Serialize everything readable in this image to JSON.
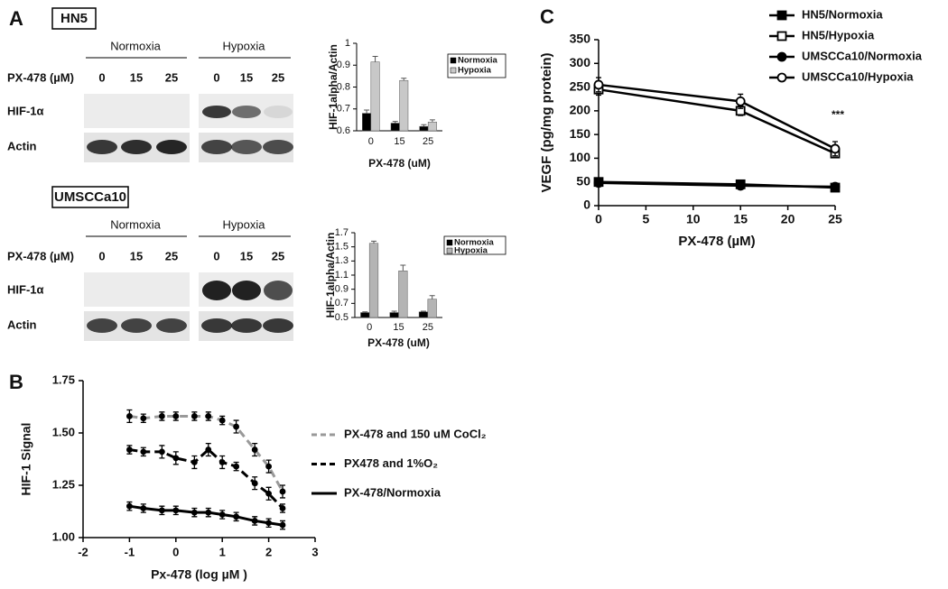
{
  "panels": [
    "A",
    "B",
    "C"
  ],
  "blots": [
    {
      "cell_line": "HN5",
      "conditions": [
        "Normoxia",
        "Hypoxia"
      ],
      "dose_label": "PX-478 (µM)",
      "doses": [
        0,
        15,
        25,
        0,
        15,
        25
      ],
      "rows": [
        "HIF-1α",
        "Actin"
      ]
    },
    {
      "cell_line": "UMSCCa10",
      "conditions": [
        "Normoxia",
        "Hypoxia"
      ],
      "dose_label": "PX-478 (µM)",
      "doses": [
        0,
        15,
        25,
        0,
        15,
        25
      ],
      "rows": [
        "HIF-1α",
        "Actin"
      ]
    }
  ],
  "chart_data": [
    {
      "type": "bar",
      "ylabel": "HIF-1alpha/Actin",
      "xlabel": "PX-478 (uM)",
      "categories": [
        0,
        15,
        25
      ],
      "series": [
        {
          "name": "Normoxia",
          "color": "#000000",
          "values": [
            0.68,
            0.635,
            0.62
          ],
          "errors": [
            0.015,
            0.008,
            0.008
          ]
        },
        {
          "name": "Hypoxia",
          "color": "#c8c8c8",
          "values": [
            0.915,
            0.83,
            0.64
          ],
          "errors": [
            0.025,
            0.01,
            0.01
          ]
        }
      ],
      "ylim": [
        0.6,
        1
      ],
      "yticks": [
        0.6,
        0.7,
        0.8,
        0.9,
        1
      ]
    },
    {
      "type": "bar",
      "ylabel": "HIF-1alpha/Actin",
      "xlabel": "PX-478 (uM)",
      "categories": [
        0,
        15,
        25
      ],
      "series": [
        {
          "name": "Normoxia",
          "color": "#000000",
          "values": [
            0.57,
            0.57,
            0.58
          ],
          "errors": [
            0.01,
            0.02,
            0.01
          ]
        },
        {
          "name": "Hypoxia",
          "color": "#b4b4b4",
          "values": [
            1.55,
            1.16,
            0.76
          ],
          "errors": [
            0.03,
            0.08,
            0.05
          ]
        }
      ],
      "ylim": [
        0.5,
        1.7
      ],
      "yticks": [
        0.5,
        0.7,
        0.9,
        1.1,
        1.3,
        1.5,
        1.7
      ]
    },
    {
      "type": "line",
      "ylabel": "HIF-1 Signal",
      "xlabel": "Px-478 (log µM )",
      "x": [
        -1,
        -0.7,
        -0.3,
        0,
        0.4,
        0.7,
        1,
        1.3,
        1.7,
        2,
        2.3
      ],
      "series": [
        {
          "name": "PX-478 and 150 uM CoCl₂",
          "color": "#999999",
          "dash": "dashed",
          "marker": "dot",
          "values": [
            1.58,
            1.57,
            1.58,
            1.58,
            1.58,
            1.58,
            1.56,
            1.53,
            1.42,
            1.34,
            1.22
          ],
          "errors": [
            0.03,
            0.02,
            0.02,
            0.02,
            0.02,
            0.02,
            0.02,
            0.03,
            0.03,
            0.03,
            0.03
          ]
        },
        {
          "name": "PX478 and 1%O₂",
          "color": "#000000",
          "dash": "dashed",
          "marker": "dot",
          "values": [
            1.42,
            1.41,
            1.41,
            1.38,
            1.36,
            1.42,
            1.36,
            1.34,
            1.26,
            1.21,
            1.14
          ],
          "errors": [
            0.02,
            0.02,
            0.03,
            0.03,
            0.03,
            0.03,
            0.03,
            0.02,
            0.03,
            0.03,
            0.02
          ]
        },
        {
          "name": "PX-478/Normoxia",
          "color": "#000000",
          "dash": "solid",
          "marker": "dot",
          "values": [
            1.15,
            1.14,
            1.13,
            1.13,
            1.12,
            1.12,
            1.11,
            1.1,
            1.08,
            1.07,
            1.06
          ],
          "errors": [
            0.02,
            0.02,
            0.02,
            0.02,
            0.02,
            0.02,
            0.02,
            0.02,
            0.02,
            0.02,
            0.02
          ]
        }
      ],
      "xlim": [
        -2,
        3
      ],
      "xticks": [
        -2,
        -1,
        0,
        1,
        2,
        3
      ],
      "ylim": [
        1,
        1.75
      ],
      "yticks": [
        {
          "value": 1,
          "label": "1.00"
        },
        {
          "value": 1.25,
          "label": "1.25"
        },
        {
          "value": 1.5,
          "label": "1.50"
        },
        {
          "value": 1.75,
          "label": "1.75"
        }
      ]
    },
    {
      "type": "line",
      "ylabel": "VEGF (pg/mg protein)",
      "xlabel": "PX-478 (µM)",
      "annotation": "***",
      "x": [
        0,
        15,
        25
      ],
      "series": [
        {
          "name": "HN5/Normoxia",
          "color": "#000000",
          "dash": "solid",
          "marker": "square-filled",
          "values": [
            50,
            45,
            38
          ],
          "errors": [
            8,
            6,
            4
          ]
        },
        {
          "name": "HN5/Hypoxia",
          "color": "#000000",
          "dash": "solid",
          "marker": "square-open",
          "values": [
            245,
            200,
            110
          ],
          "errors": [
            12,
            10,
            8
          ]
        },
        {
          "name": "UMSCCa10/Normoxia",
          "color": "#000000",
          "dash": "solid",
          "marker": "circle-filled",
          "values": [
            48,
            42,
            40
          ],
          "errors": [
            6,
            5,
            4
          ]
        },
        {
          "name": "UMSCCa10/Hypoxia",
          "color": "#000000",
          "dash": "solid",
          "marker": "circle-open",
          "values": [
            255,
            220,
            120
          ],
          "errors": [
            15,
            15,
            15
          ]
        }
      ],
      "xlim": [
        0,
        25
      ],
      "xticks": [
        0,
        5,
        10,
        15,
        20,
        25
      ],
      "ylim": [
        0,
        350
      ],
      "yticks": [
        0,
        50,
        100,
        150,
        200,
        250,
        300,
        350
      ]
    }
  ]
}
